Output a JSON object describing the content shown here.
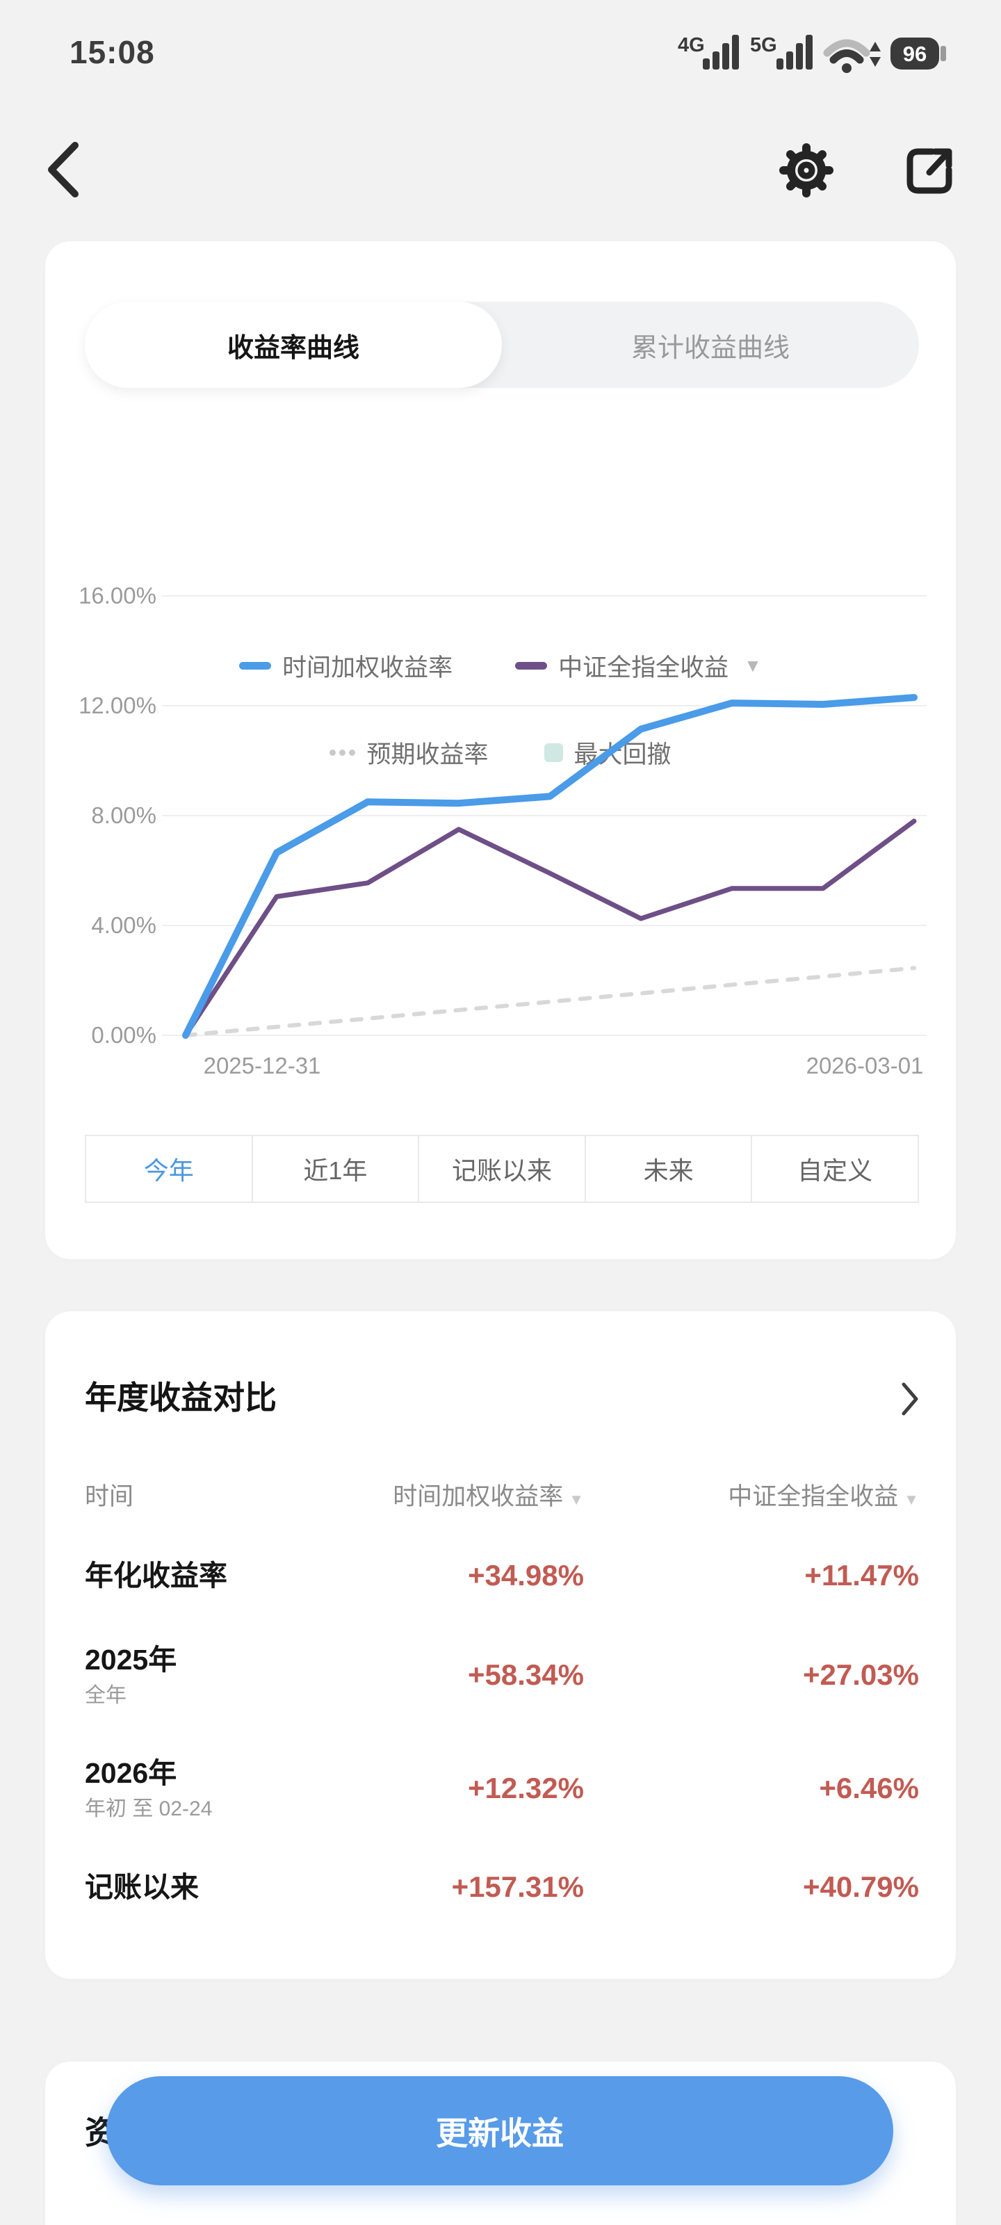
{
  "status_bar": {
    "time": "15:08",
    "network_badge_1": "4G",
    "network_badge_2": "5G",
    "battery_level": "96"
  },
  "tabs": {
    "rate_curve": "收益率曲线",
    "cumulative_curve": "累计收益曲线"
  },
  "icons": {
    "caret_down": "▼"
  },
  "legend": [
    {
      "label": "时间加权收益率",
      "color": "#4A9BE8",
      "swatch": "dash",
      "dropdown": false
    },
    {
      "label": "中证全指全收益",
      "color": "#6E4F87",
      "swatch": "dash",
      "dropdown": true
    },
    {
      "label": "预期收益率",
      "color": "#C9C9C9",
      "swatch": "dots",
      "dropdown": false
    },
    {
      "label": "最大回撤",
      "color": "#CFE9E2",
      "swatch": "square",
      "dropdown": false
    }
  ],
  "chart_data": {
    "type": "line",
    "x_labels": [
      "2025-12-31",
      "2026-03-01"
    ],
    "ylim": [
      0,
      16
    ],
    "yticks": [
      "0.00%",
      "4.00%",
      "8.00%",
      "12.00%",
      "16.00%"
    ],
    "grid": true,
    "legend_position": "top",
    "series": [
      {
        "name": "时间加权收益率",
        "color": "#4A9BE8",
        "style": "solid",
        "stroke_width": 10,
        "values": [
          0,
          6.65,
          8.5,
          8.45,
          8.7,
          11.15,
          12.1,
          12.05,
          12.3
        ]
      },
      {
        "name": "中证全指全收益",
        "color": "#6E4F87",
        "style": "solid",
        "stroke_width": 7,
        "values": [
          0,
          5.05,
          5.55,
          7.5,
          5.9,
          4.25,
          5.35,
          5.35,
          7.8
        ]
      },
      {
        "name": "预期收益率",
        "color": "#D8D8D8",
        "style": "dashed",
        "stroke_width": 6,
        "values": [
          0,
          0.31,
          0.61,
          0.92,
          1.22,
          1.53,
          1.84,
          2.14,
          2.45
        ]
      }
    ]
  },
  "range_buttons": [
    {
      "label": "今年",
      "active": true
    },
    {
      "label": "近1年",
      "active": false
    },
    {
      "label": "记账以来",
      "active": false
    },
    {
      "label": "未来",
      "active": false
    },
    {
      "label": "自定义",
      "active": false
    }
  ],
  "comparison": {
    "title": "年度收益对比",
    "headers": [
      "时间",
      "时间加权收益率",
      "中证全指全收益"
    ],
    "rows": [
      {
        "label": "年化收益率",
        "sub": "",
        "values": [
          "+34.98%",
          "+11.47%"
        ]
      },
      {
        "label": "2025年",
        "sub": "全年",
        "values": [
          "+58.34%",
          "+27.03%"
        ]
      },
      {
        "label": "2026年",
        "sub": "年初 至 02-24",
        "values": [
          "+12.32%",
          "+6.46%"
        ]
      },
      {
        "label": "记账以来",
        "sub": "",
        "values": [
          "+157.31%",
          "+40.79%"
        ]
      }
    ]
  },
  "assets_card": {
    "partial_title": "资"
  },
  "update_button": {
    "label": "更新收益"
  },
  "colors": {
    "background": "#F2F2F3",
    "card": "#FFFFFF",
    "accent_blue": "#4A97E0",
    "button_blue": "#579BE9",
    "value_red": "#C15B53",
    "line_blue": "#4A9BE8",
    "line_purple": "#6E4F87",
    "expected_gray": "#D8D8D8",
    "drawdown_teal": "#CFE9E2",
    "grid_line": "#EFEFEF",
    "axis_text": "#9B9B9B"
  }
}
